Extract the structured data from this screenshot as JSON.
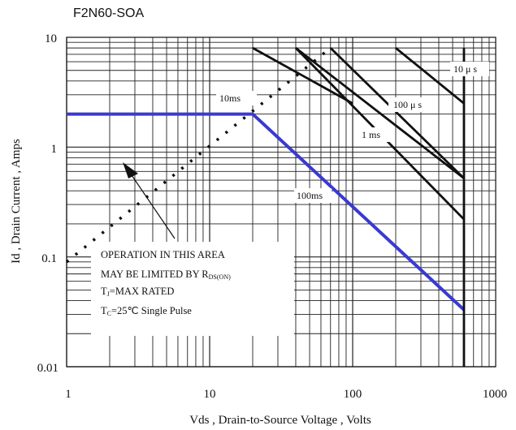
{
  "chart_data": {
    "type": "line",
    "title": "F2N60-SOA",
    "xlabel": "Vds , Drain-to-Source Voltage , Volts",
    "ylabel": "Id , Drain Current , Amps",
    "xscale": "log",
    "yscale": "log",
    "xlim": [
      1,
      1000
    ],
    "ylim": [
      0.01,
      10
    ],
    "xticks": [
      "1",
      "10",
      "100",
      "1000"
    ],
    "yticks": [
      "10",
      "1",
      "0.1",
      "0.01"
    ],
    "grid": true,
    "series": [
      {
        "name": "",
        "style": "blue",
        "x": [
          1,
          20,
          600
        ],
        "y": [
          2,
          2,
          0.033
        ]
      },
      {
        "name": "",
        "style": "dotted",
        "x": [
          1,
          70
        ],
        "y": [
          0.09,
          8
        ]
      },
      {
        "name": "10ms",
        "style": "black",
        "x": [
          20,
          100
        ],
        "y": [
          8,
          2.5
        ]
      },
      {
        "name": "1 ms",
        "style": "black",
        "x": [
          40,
          600
        ],
        "y": [
          8,
          0.52
        ]
      },
      {
        "name": "100ms",
        "style": "black",
        "x": [
          40,
          600
        ],
        "y": [
          8,
          0.22
        ]
      },
      {
        "name": "100 μ s",
        "style": "black",
        "x": [
          70,
          600
        ],
        "y": [
          8,
          0.52
        ]
      },
      {
        "name": "10 μ s",
        "style": "black",
        "x": [
          200,
          600
        ],
        "y": [
          8,
          2.5
        ]
      }
    ],
    "annotations": {
      "label_10ms": "10ms",
      "label_1ms": "1 ms",
      "label_100ms": "100ms",
      "label_100us": "100 μ s",
      "label_10us": "10 μ s"
    },
    "notes": [
      "OPERATION IN THIS AREA",
      "MAY BE LIMITED BY R",
      "T",
      "=MAX RATED",
      "T",
      "=25℃  Single Pulse"
    ],
    "notes_sub": [
      "DS(ON)",
      "J",
      "C"
    ]
  }
}
